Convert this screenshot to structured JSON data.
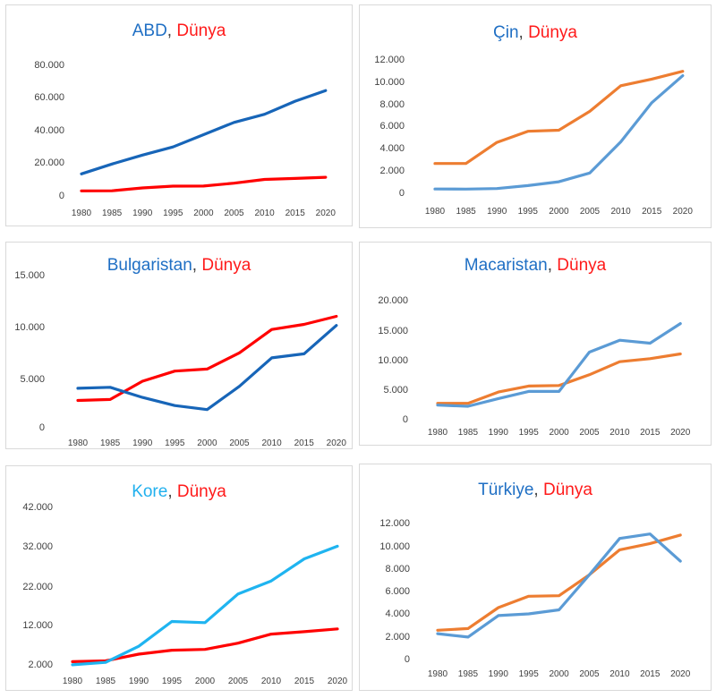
{
  "chart_data": [
    {
      "type": "line",
      "title_country": "ABD",
      "title_sep": ", ",
      "title_world": "Dünya",
      "country_color": "#1f6fc4",
      "world_color": "#ff1a1a",
      "categories": [
        "1980",
        "1985",
        "1990",
        "1995",
        "2000",
        "2005",
        "2010",
        "2015",
        "2020"
      ],
      "yticks": [
        "0",
        "20.000",
        "40.000",
        "60.000",
        "80.000"
      ],
      "ylim": [
        0,
        80000
      ],
      "series": [
        {
          "name": "ABD",
          "color": "#1765b8",
          "values": [
            13000,
            19000,
            24500,
            29500,
            37000,
            44500,
            49500,
            57500,
            64000
          ]
        },
        {
          "name": "Dünya",
          "color": "#ff0000",
          "values": [
            2600,
            2650,
            4400,
            5500,
            5550,
            7300,
            9600,
            10200,
            10900
          ]
        }
      ]
    },
    {
      "type": "line",
      "title_country": "Çin",
      "title_sep": ", ",
      "title_world": "Dünya",
      "country_color": "#1f6fc4",
      "world_color": "#ff1a1a",
      "categories": [
        "1980",
        "1985",
        "1990",
        "1995",
        "2000",
        "2005",
        "2010",
        "2015",
        "2020"
      ],
      "yticks": [
        "0",
        "2.000",
        "4.000",
        "6.000",
        "8.000",
        "10.000",
        "12.000"
      ],
      "ylim": [
        0,
        12000
      ],
      "series": [
        {
          "name": "Çin",
          "color": "#5b9bd5",
          "values": [
            310,
            300,
            350,
            610,
            960,
            1750,
            4550,
            8070,
            10500
          ]
        },
        {
          "name": "Dünya",
          "color": "#ed7d31",
          "values": [
            2600,
            2600,
            4500,
            5500,
            5600,
            7300,
            9600,
            10200,
            10900
          ]
        }
      ]
    },
    {
      "type": "line",
      "title_country": "Bulgaristan",
      "title_sep": ", ",
      "title_world": "Dünya",
      "country_color": "#1f6fc4",
      "world_color": "#ff1a1a",
      "categories": [
        "1980",
        "1985",
        "1990",
        "1995",
        "2000",
        "2005",
        "2010",
        "2015",
        "2020"
      ],
      "yticks": [
        "0",
        "5.000",
        "10.000",
        "15.000"
      ],
      "ylim": [
        0,
        15000
      ],
      "series": [
        {
          "name": "Bulgaristan",
          "color": "#1765b8",
          "values": [
            3800,
            3900,
            2900,
            2100,
            1700,
            4000,
            6800,
            7200,
            10000
          ]
        },
        {
          "name": "Dünya",
          "color": "#ff0000",
          "values": [
            2600,
            2700,
            4500,
            5500,
            5700,
            7300,
            9600,
            10100,
            10900
          ]
        }
      ]
    },
    {
      "type": "line",
      "title_country": "Macaristan",
      "title_sep": ", ",
      "title_world": "Dünya",
      "country_color": "#1f6fc4",
      "world_color": "#ff1a1a",
      "categories": [
        "1980",
        "1985",
        "1990",
        "1995",
        "2000",
        "2005",
        "2010",
        "2015",
        "2020"
      ],
      "yticks": [
        "0",
        "5.000",
        "10.000",
        "15.000",
        "20.000"
      ],
      "ylim": [
        0,
        20000
      ],
      "series": [
        {
          "name": "Macaristan",
          "color": "#5b9bd5",
          "values": [
            2300,
            2100,
            3400,
            4600,
            4600,
            11200,
            13200,
            12700,
            16000
          ]
        },
        {
          "name": "Dünya",
          "color": "#ed7d31",
          "values": [
            2600,
            2600,
            4500,
            5500,
            5600,
            7400,
            9600,
            10100,
            10900
          ]
        }
      ]
    },
    {
      "type": "line",
      "title_country": "Kore",
      "title_sep": ", ",
      "title_world": "Dünya",
      "country_color": "#20b0ee",
      "world_color": "#ff1a1a",
      "categories": [
        "1980",
        "1985",
        "1990",
        "1995",
        "2000",
        "2005",
        "2010",
        "2015",
        "2020"
      ],
      "yticks": [
        "2.000",
        "12.000",
        "22.000",
        "32.000",
        "42.000"
      ],
      "ylim": [
        2000,
        42000
      ],
      "series": [
        {
          "name": "Kore",
          "color": "#1fb4f0",
          "values": [
            1800,
            2400,
            6500,
            12800,
            12500,
            19800,
            23100,
            28700,
            31900
          ]
        },
        {
          "name": "Dünya",
          "color": "#ff0000",
          "values": [
            2600,
            2800,
            4500,
            5500,
            5700,
            7300,
            9600,
            10200,
            10900
          ]
        }
      ]
    },
    {
      "type": "line",
      "title_country": "Türkiye",
      "title_sep": ", ",
      "title_world": "Dünya",
      "country_color": "#1f6fc4",
      "world_color": "#ff1a1a",
      "categories": [
        "1980",
        "1985",
        "1990",
        "1995",
        "2000",
        "2005",
        "2010",
        "2015",
        "2020"
      ],
      "yticks": [
        "0",
        "2.000",
        "4.000",
        "6.000",
        "8.000",
        "10.000",
        "12.000"
      ],
      "ylim": [
        0,
        12000
      ],
      "series": [
        {
          "name": "Türkiye",
          "color": "#5b9bd5",
          "values": [
            2200,
            1900,
            3800,
            3950,
            4300,
            7400,
            10600,
            11000,
            8600
          ]
        },
        {
          "name": "Dünya",
          "color": "#ed7d31",
          "values": [
            2500,
            2650,
            4500,
            5500,
            5550,
            7400,
            9600,
            10150,
            10900
          ]
        }
      ]
    }
  ]
}
